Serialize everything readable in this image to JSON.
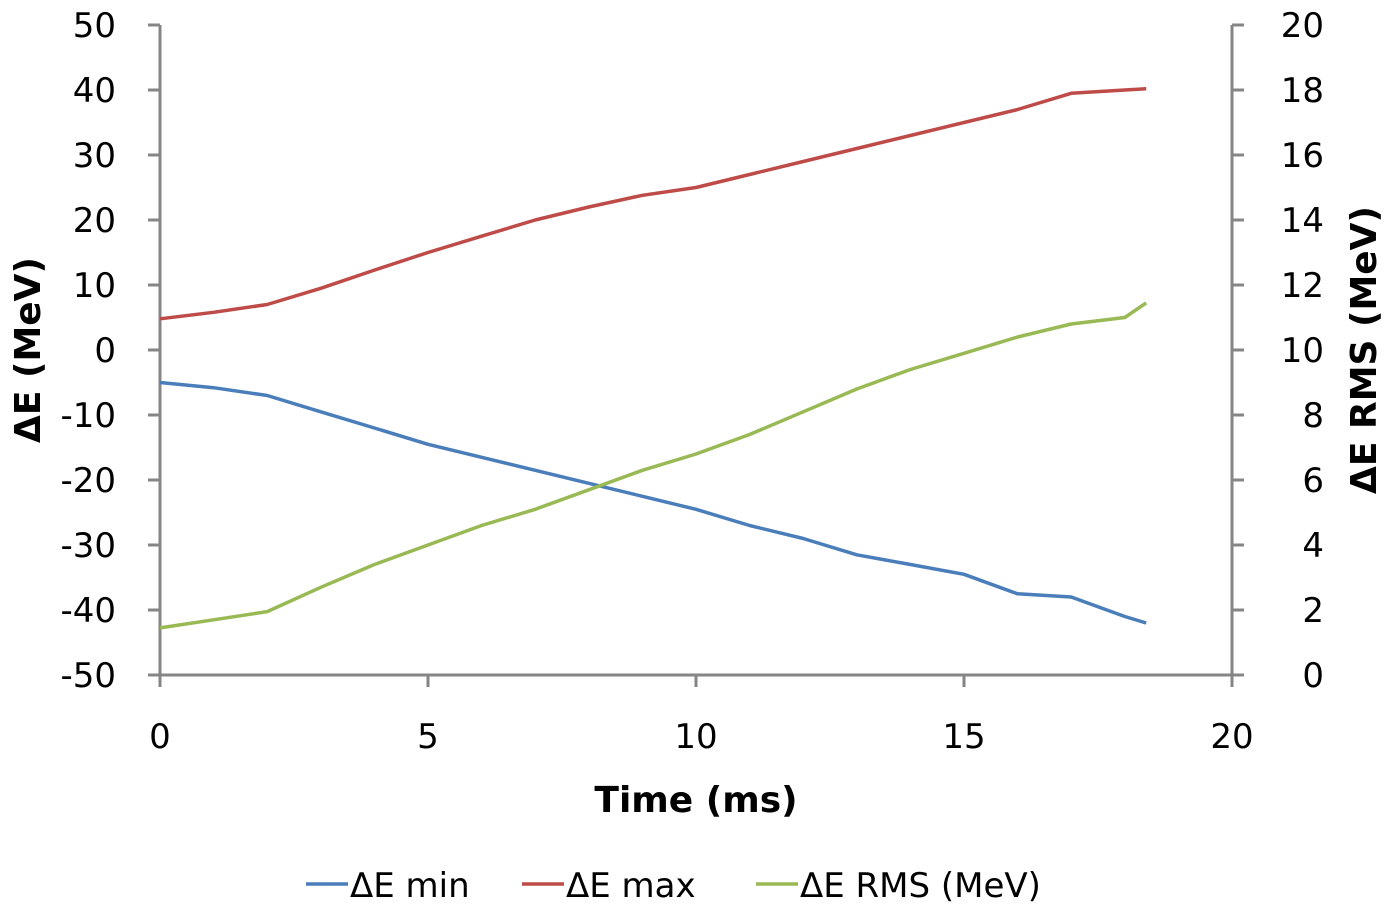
{
  "chart_data": {
    "type": "line",
    "title": "",
    "xlabel": "Time (ms)",
    "ylabel": "ΔE (MeV)",
    "y2label": "ΔE RMS (MeV)",
    "xlim": [
      0,
      20
    ],
    "ylim": [
      -50,
      50
    ],
    "y2lim": [
      0,
      20
    ],
    "xticks": [
      "0",
      "5",
      "10",
      "15",
      "20"
    ],
    "yticks": [
      "50",
      "40",
      "30",
      "20",
      "10",
      "0",
      "-10",
      "-20",
      "-30",
      "-40",
      "-50"
    ],
    "y2ticks": [
      "20",
      "18",
      "16",
      "14",
      "12",
      "10",
      "8",
      "6",
      "4",
      "2",
      "0"
    ],
    "grid": false,
    "legend_position": "bottom",
    "series": [
      {
        "name": "ΔE min",
        "axis": "left",
        "color": "#4a7ebb",
        "x": [
          0,
          1,
          2,
          3,
          4,
          5,
          6,
          7,
          8,
          9,
          10,
          11,
          12,
          13,
          14,
          15,
          16,
          17,
          18,
          18.4
        ],
        "y": [
          -5,
          -5.8,
          -7,
          -9.5,
          -12,
          -14.5,
          -16.5,
          -18.5,
          -20.5,
          -22.5,
          -24.5,
          -27,
          -29,
          -31.5,
          -33,
          -34.5,
          -37.5,
          -38,
          -41,
          -42
        ]
      },
      {
        "name": "ΔE max",
        "axis": "left",
        "color": "#be4b48",
        "x": [
          0,
          1,
          2,
          3,
          4,
          5,
          6,
          7,
          8,
          9,
          10,
          11,
          12,
          13,
          14,
          15,
          16,
          17,
          18,
          18.4
        ],
        "y": [
          4.8,
          5.8,
          7,
          9.5,
          12.3,
          15,
          17.5,
          20,
          22,
          23.8,
          25,
          27,
          29,
          31,
          33,
          35,
          37,
          39.5,
          40,
          40.2
        ]
      },
      {
        "name": "ΔE RMS (MeV)",
        "axis": "right",
        "color": "#98b954",
        "x": [
          0,
          1,
          2,
          3,
          4,
          5,
          6,
          7,
          8,
          9,
          10,
          11,
          12,
          13,
          14,
          15,
          16,
          17,
          18,
          18.4
        ],
        "y": [
          1.45,
          1.7,
          1.95,
          2.7,
          3.4,
          4.0,
          4.6,
          5.1,
          5.7,
          6.3,
          6.8,
          7.4,
          8.1,
          8.8,
          9.4,
          9.9,
          10.4,
          10.8,
          11.0,
          11.45
        ]
      }
    ]
  }
}
